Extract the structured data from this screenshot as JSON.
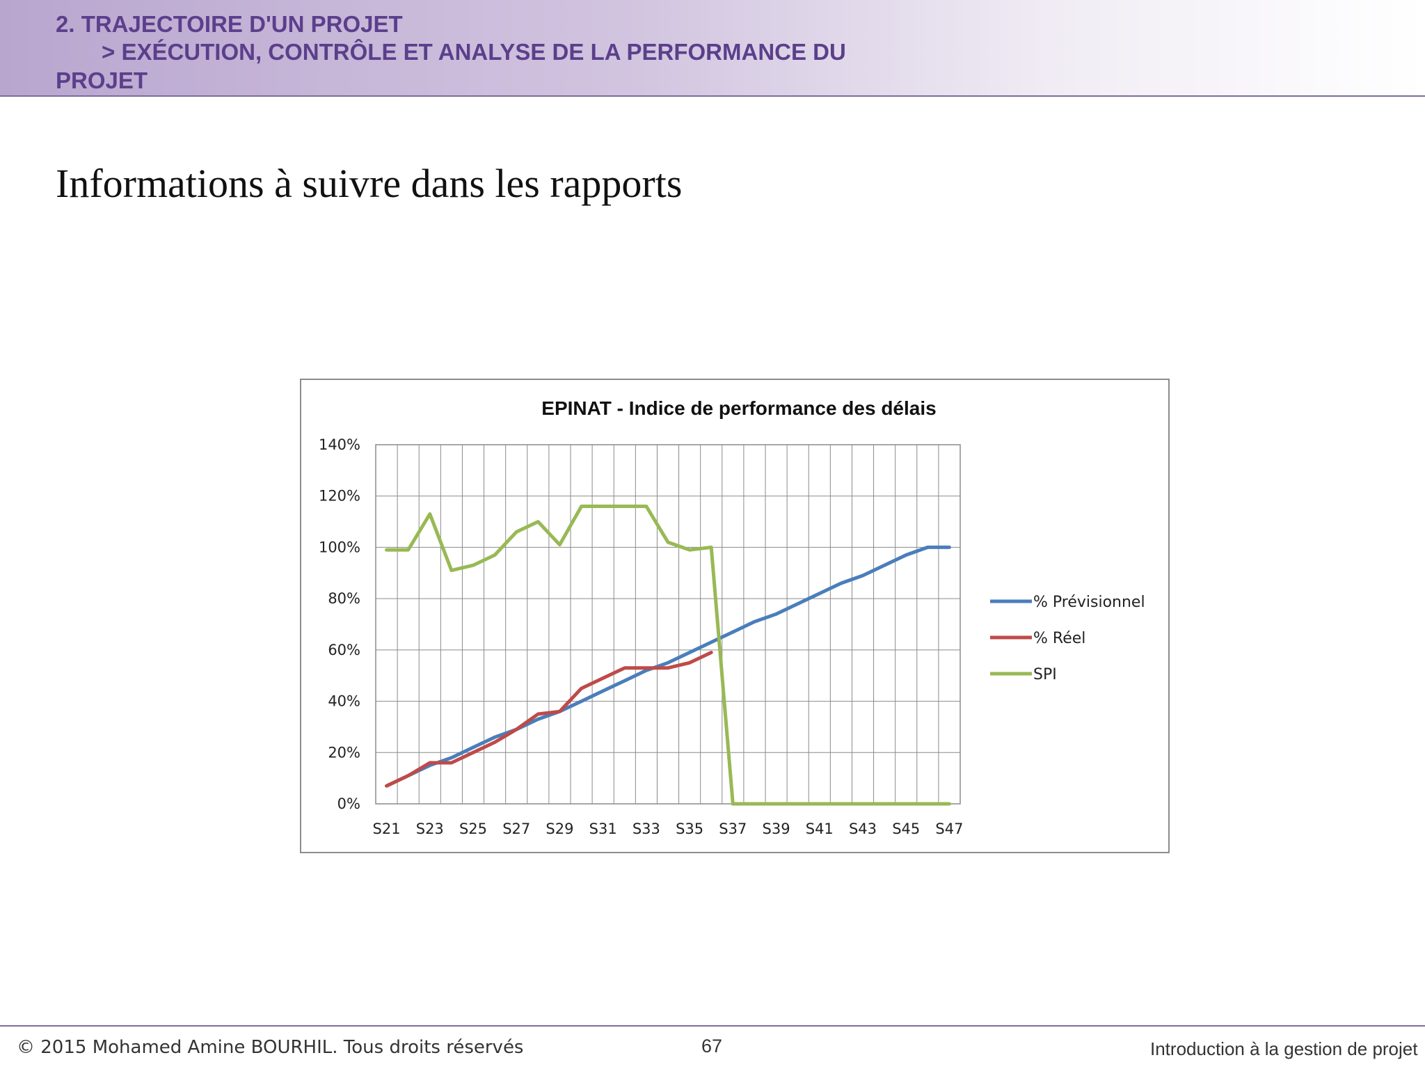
{
  "header": {
    "line1": "2.   TRAJECTOIRE D'UN PROJET",
    "line2": "> EXÉCUTION, CONTRÔLE ET ANALYSE DE LA PERFORMANCE DU",
    "line3": "PROJET"
  },
  "slide_title": "Informations à suivre dans les rapports",
  "footer": {
    "copyright": "© 2015 Mohamed Amine BOURHIL. Tous droits réservés",
    "page_number": "67",
    "course": "Introduction à la gestion de projet"
  },
  "chart_data": {
    "type": "line",
    "title": "EPINAT - Indice de performance des délais",
    "xlabel": "",
    "ylabel": "",
    "categories": [
      "S21",
      "S22",
      "S23",
      "S24",
      "S25",
      "S26",
      "S27",
      "S28",
      "S29",
      "S30",
      "S31",
      "S32",
      "S33",
      "S34",
      "S35",
      "S36",
      "S37",
      "S38",
      "S39",
      "S40",
      "S41",
      "S42",
      "S43",
      "S44",
      "S45",
      "S46",
      "S47"
    ],
    "x_tick_labels": [
      "S21",
      "S23",
      "S25",
      "S27",
      "S29",
      "S31",
      "S33",
      "S35",
      "S37",
      "S39",
      "S41",
      "S43",
      "S45",
      "S47"
    ],
    "y_tick_labels": [
      "0%",
      "20%",
      "40%",
      "60%",
      "80%",
      "100%",
      "120%",
      "140%"
    ],
    "ylim": [
      0,
      140
    ],
    "grid": true,
    "legend_position": "right",
    "series": [
      {
        "name": "% Prévisionnel",
        "color": "#4a7ebb",
        "values": [
          7,
          11,
          15,
          18,
          22,
          26,
          29,
          33,
          36,
          40,
          44,
          48,
          52,
          55,
          59,
          63,
          67,
          71,
          74,
          78,
          82,
          86,
          89,
          93,
          97,
          100,
          100
        ]
      },
      {
        "name": "% Réel",
        "color": "#be4b48",
        "values": [
          7,
          11,
          16,
          16,
          20,
          24,
          29,
          35,
          36,
          45,
          49,
          53,
          53,
          53,
          55,
          59,
          null,
          null,
          null,
          null,
          null,
          null,
          null,
          null,
          null,
          null,
          null
        ]
      },
      {
        "name": "SPI",
        "color": "#98b954",
        "values": [
          99,
          99,
          113,
          91,
          93,
          97,
          106,
          110,
          101,
          116,
          116,
          116,
          116,
          102,
          99,
          100,
          0,
          0,
          0,
          0,
          0,
          0,
          0,
          0,
          0,
          0,
          0
        ]
      }
    ]
  }
}
